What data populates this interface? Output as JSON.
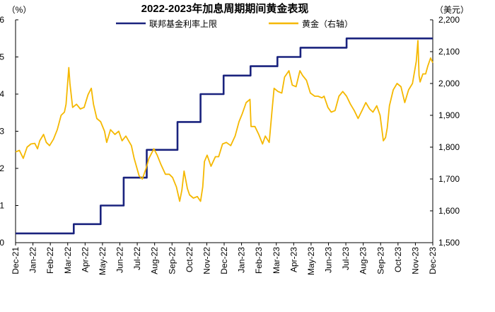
{
  "chart_data": {
    "type": "line",
    "title": "2022-2023年加息周期期间黄金表现",
    "left_unit": "（%）",
    "right_unit": "（美元）",
    "x_labels": [
      "Dec-21",
      "Jan-22",
      "Feb-22",
      "Mar-22",
      "Apr-22",
      "May-22",
      "Jun-22",
      "Jul-22",
      "Aug-22",
      "Sep-22",
      "Oct-22",
      "Nov-22",
      "Dec-22",
      "Jan-23",
      "Feb-23",
      "Mar-23",
      "Apr-23",
      "May-23",
      "Jun-23",
      "Jul-23",
      "Aug-23",
      "Sep-23",
      "Oct-23",
      "Nov-23",
      "Dec-23"
    ],
    "left_axis": {
      "min": 0,
      "max": 6,
      "ticks": [
        "0",
        "1",
        "2",
        "3",
        "4",
        "5",
        "6"
      ]
    },
    "right_axis": {
      "min": 1500,
      "max": 2200,
      "ticks": [
        "1,500",
        "1,600",
        "1,700",
        "1,800",
        "1,900",
        "2,000",
        "2,100",
        "2,200"
      ]
    },
    "series": [
      {
        "name": "联邦基金利率上限",
        "axis": "left",
        "color": "#1a237e",
        "step": true,
        "points": [
          [
            "2021-12-01",
            0.25
          ],
          [
            "2022-03-17",
            0.5
          ],
          [
            "2022-05-05",
            1.0
          ],
          [
            "2022-06-16",
            1.75
          ],
          [
            "2022-07-28",
            2.5
          ],
          [
            "2022-09-22",
            3.25
          ],
          [
            "2022-11-03",
            4.0
          ],
          [
            "2022-12-15",
            4.5
          ],
          [
            "2023-02-02",
            4.75
          ],
          [
            "2023-03-23",
            5.0
          ],
          [
            "2023-05-04",
            5.25
          ],
          [
            "2023-07-27",
            5.5
          ],
          [
            "2023-12-31",
            5.5
          ]
        ]
      },
      {
        "name": "黄金（右轴）",
        "axis": "right",
        "color": "#f5b800",
        "points": [
          [
            "2021-12-01",
            1785
          ],
          [
            "2021-12-08",
            1790
          ],
          [
            "2021-12-15",
            1765
          ],
          [
            "2021-12-22",
            1800
          ],
          [
            "2021-12-29",
            1810
          ],
          [
            "2022-01-05",
            1812
          ],
          [
            "2022-01-10",
            1795
          ],
          [
            "2022-01-14",
            1820
          ],
          [
            "2022-01-21",
            1840
          ],
          [
            "2022-01-26",
            1815
          ],
          [
            "2022-02-01",
            1805
          ],
          [
            "2022-02-08",
            1825
          ],
          [
            "2022-02-15",
            1855
          ],
          [
            "2022-02-22",
            1900
          ],
          [
            "2022-02-28",
            1910
          ],
          [
            "2022-03-03",
            1935
          ],
          [
            "2022-03-08",
            2050
          ],
          [
            "2022-03-10",
            2000
          ],
          [
            "2022-03-15",
            1925
          ],
          [
            "2022-03-22",
            1935
          ],
          [
            "2022-03-29",
            1920
          ],
          [
            "2022-04-05",
            1925
          ],
          [
            "2022-04-12",
            1965
          ],
          [
            "2022-04-18",
            1985
          ],
          [
            "2022-04-22",
            1935
          ],
          [
            "2022-04-28",
            1890
          ],
          [
            "2022-05-05",
            1880
          ],
          [
            "2022-05-12",
            1850
          ],
          [
            "2022-05-16",
            1815
          ],
          [
            "2022-05-23",
            1855
          ],
          [
            "2022-05-31",
            1840
          ],
          [
            "2022-06-07",
            1850
          ],
          [
            "2022-06-13",
            1820
          ],
          [
            "2022-06-20",
            1835
          ],
          [
            "2022-06-30",
            1805
          ],
          [
            "2022-07-05",
            1765
          ],
          [
            "2022-07-14",
            1710
          ],
          [
            "2022-07-20",
            1700
          ],
          [
            "2022-07-27",
            1735
          ],
          [
            "2022-08-01",
            1765
          ],
          [
            "2022-08-10",
            1795
          ],
          [
            "2022-08-16",
            1775
          ],
          [
            "2022-08-23",
            1745
          ],
          [
            "2022-08-31",
            1715
          ],
          [
            "2022-09-07",
            1715
          ],
          [
            "2022-09-13",
            1705
          ],
          [
            "2022-09-20",
            1675
          ],
          [
            "2022-09-26",
            1630
          ],
          [
            "2022-09-30",
            1665
          ],
          [
            "2022-10-04",
            1725
          ],
          [
            "2022-10-10",
            1670
          ],
          [
            "2022-10-14",
            1650
          ],
          [
            "2022-10-21",
            1640
          ],
          [
            "2022-10-28",
            1645
          ],
          [
            "2022-11-03",
            1630
          ],
          [
            "2022-11-07",
            1675
          ],
          [
            "2022-11-10",
            1755
          ],
          [
            "2022-11-15",
            1775
          ],
          [
            "2022-11-22",
            1740
          ],
          [
            "2022-11-30",
            1770
          ],
          [
            "2022-12-06",
            1770
          ],
          [
            "2022-12-13",
            1810
          ],
          [
            "2022-12-20",
            1815
          ],
          [
            "2022-12-28",
            1805
          ],
          [
            "2023-01-05",
            1835
          ],
          [
            "2023-01-12",
            1880
          ],
          [
            "2023-01-18",
            1905
          ],
          [
            "2023-01-25",
            1940
          ],
          [
            "2023-02-01",
            1950
          ],
          [
            "2023-02-03",
            1865
          ],
          [
            "2023-02-10",
            1865
          ],
          [
            "2023-02-17",
            1840
          ],
          [
            "2023-02-24",
            1810
          ],
          [
            "2023-03-01",
            1835
          ],
          [
            "2023-03-08",
            1815
          ],
          [
            "2023-03-13",
            1910
          ],
          [
            "2023-03-17",
            1985
          ],
          [
            "2023-03-24",
            1975
          ],
          [
            "2023-03-31",
            1970
          ],
          [
            "2023-04-05",
            2020
          ],
          [
            "2023-04-13",
            2040
          ],
          [
            "2023-04-19",
            1995
          ],
          [
            "2023-04-26",
            1990
          ],
          [
            "2023-05-03",
            2040
          ],
          [
            "2023-05-08",
            2025
          ],
          [
            "2023-05-15",
            2010
          ],
          [
            "2023-05-22",
            1970
          ],
          [
            "2023-05-30",
            1960
          ],
          [
            "2023-06-05",
            1960
          ],
          [
            "2023-06-12",
            1955
          ],
          [
            "2023-06-16",
            1960
          ],
          [
            "2023-06-23",
            1925
          ],
          [
            "2023-06-29",
            1910
          ],
          [
            "2023-07-06",
            1915
          ],
          [
            "2023-07-13",
            1960
          ],
          [
            "2023-07-20",
            1975
          ],
          [
            "2023-07-27",
            1960
          ],
          [
            "2023-08-03",
            1935
          ],
          [
            "2023-08-10",
            1915
          ],
          [
            "2023-08-17",
            1890
          ],
          [
            "2023-08-24",
            1915
          ],
          [
            "2023-08-31",
            1940
          ],
          [
            "2023-09-07",
            1920
          ],
          [
            "2023-09-13",
            1910
          ],
          [
            "2023-09-20",
            1930
          ],
          [
            "2023-09-26",
            1900
          ],
          [
            "2023-10-02",
            1820
          ],
          [
            "2023-10-06",
            1830
          ],
          [
            "2023-10-09",
            1860
          ],
          [
            "2023-10-13",
            1930
          ],
          [
            "2023-10-20",
            1980
          ],
          [
            "2023-10-27",
            2000
          ],
          [
            "2023-11-03",
            1990
          ],
          [
            "2023-11-10",
            1940
          ],
          [
            "2023-11-17",
            1980
          ],
          [
            "2023-11-24",
            2000
          ],
          [
            "2023-11-28",
            2040
          ],
          [
            "2023-12-01",
            2070
          ],
          [
            "2023-12-04",
            2135
          ],
          [
            "2023-12-06",
            2025
          ],
          [
            "2023-12-08",
            2005
          ],
          [
            "2023-12-13",
            2030
          ],
          [
            "2023-12-18",
            2030
          ],
          [
            "2023-12-22",
            2055
          ],
          [
            "2023-12-27",
            2080
          ],
          [
            "2023-12-31",
            2065
          ]
        ]
      }
    ],
    "legend_position": "top",
    "grid": false
  }
}
